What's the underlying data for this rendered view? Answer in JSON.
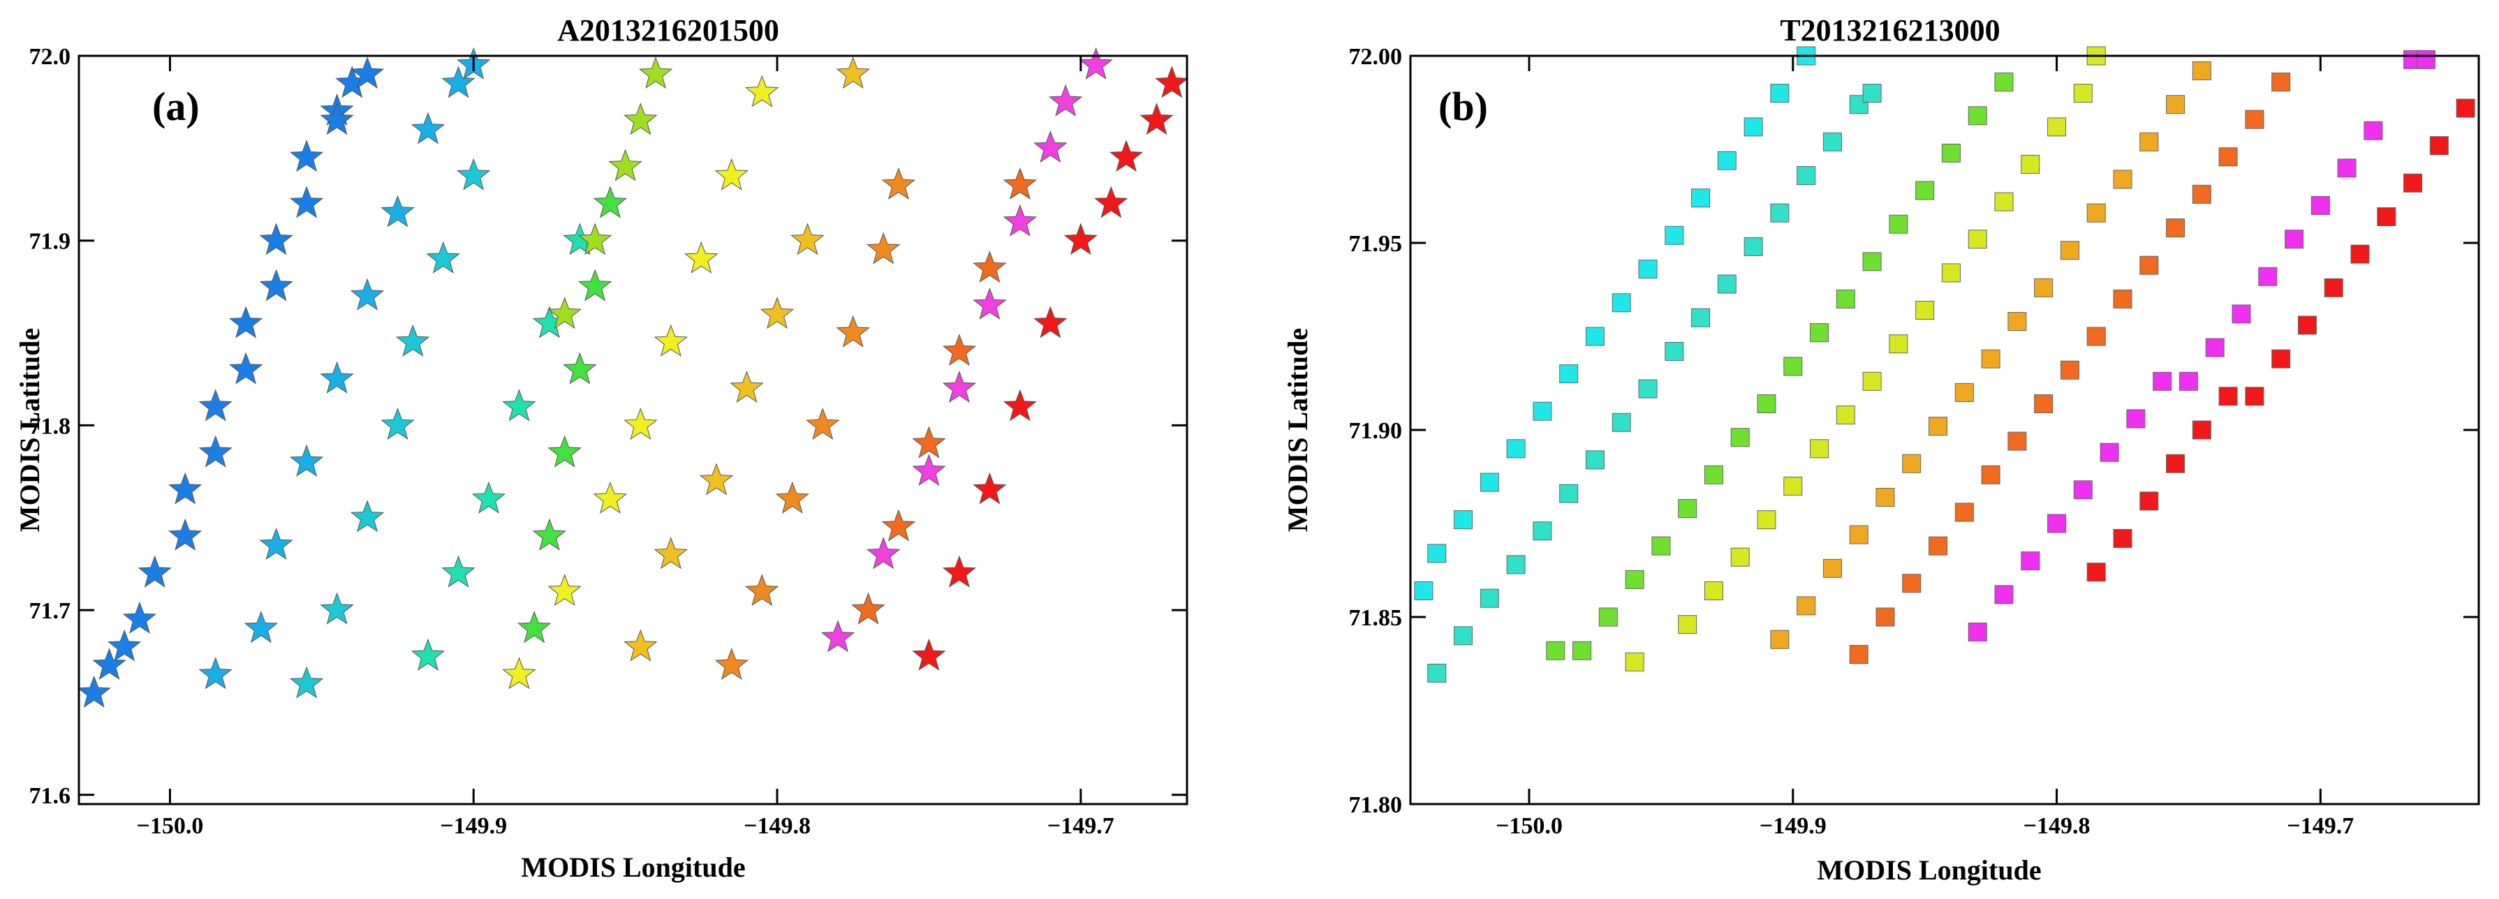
{
  "chart_data": [
    {
      "type": "scatter",
      "id": "a",
      "title": "A2013216201500",
      "panel_label": "(a)",
      "xlabel": "MODIS Longitude",
      "ylabel": "MODIS Latitude",
      "xlim": [
        -150.03,
        -149.665
      ],
      "ylim": [
        71.595,
        72.0
      ],
      "xticks": [
        -150.0,
        -149.9,
        -149.8,
        -149.7
      ],
      "xtick_labels": [
        "−150.0",
        "−149.9",
        "−149.8",
        "−149.7"
      ],
      "yticks": [
        71.6,
        71.7,
        71.8,
        71.9,
        72.0
      ],
      "ytick_labels": [
        "71.6",
        "71.7",
        "71.8",
        "71.9",
        "72.0"
      ],
      "marker": "star",
      "grid": false,
      "series": [
        {
          "name": "row-1",
          "color": "#1a7ee6",
          "x": [
            -150.025,
            -150.015,
            -150.005,
            -149.995,
            -149.985,
            -149.975,
            -149.965,
            -149.955,
            -149.945,
            -149.94
          ],
          "y": [
            71.655,
            71.68,
            71.72,
            71.765,
            71.81,
            71.855,
            71.9,
            71.945,
            71.97,
            71.985
          ]
        },
        {
          "name": "row-2",
          "color": "#1a7ee6",
          "x": [
            -150.02,
            -150.01,
            -149.995,
            -149.985,
            -149.975,
            -149.965,
            -149.955,
            -149.945,
            -149.935
          ],
          "y": [
            71.67,
            71.695,
            71.74,
            71.785,
            71.83,
            71.875,
            71.92,
            71.965,
            71.99
          ]
        },
        {
          "name": "row-3",
          "color": "#1aaee6",
          "x": [
            -149.985,
            -149.97,
            -149.965,
            -149.955,
            -149.945,
            -149.935,
            -149.925,
            -149.915,
            -149.905,
            -149.9
          ],
          "y": [
            71.665,
            71.69,
            71.735,
            71.78,
            71.825,
            71.87,
            71.915,
            71.96,
            71.985,
            71.995
          ]
        },
        {
          "name": "row-4",
          "color": "#1ac8d6",
          "x": [
            -149.955,
            -149.945,
            -149.935,
            -149.925,
            -149.92,
            -149.91,
            -149.9
          ],
          "y": [
            71.66,
            71.7,
            71.75,
            71.8,
            71.845,
            71.89,
            71.935
          ]
        },
        {
          "name": "row-5",
          "color": "#20e0b0",
          "x": [
            -149.915,
            -149.905,
            -149.895,
            -149.885,
            -149.875,
            -149.865
          ],
          "y": [
            71.675,
            71.72,
            71.76,
            71.81,
            71.855,
            71.9
          ]
        },
        {
          "name": "row-6",
          "color": "#44e040",
          "x": [
            -149.88,
            -149.875,
            -149.87,
            -149.865,
            -149.86,
            -149.855
          ],
          "y": [
            71.69,
            71.74,
            71.785,
            71.83,
            71.875,
            71.92
          ]
        },
        {
          "name": "row-7",
          "color": "#9ee020",
          "x": [
            -149.87,
            -149.86,
            -149.85,
            -149.845,
            -149.84
          ],
          "y": [
            71.86,
            71.9,
            71.94,
            71.965,
            71.99
          ]
        },
        {
          "name": "row-8",
          "color": "#f0f020",
          "x": [
            -149.885,
            -149.87,
            -149.855,
            -149.845,
            -149.835,
            -149.825,
            -149.815,
            -149.805
          ],
          "y": [
            71.665,
            71.71,
            71.76,
            71.8,
            71.845,
            71.89,
            71.935,
            71.98
          ]
        },
        {
          "name": "row-9",
          "color": "#f0c020",
          "x": [
            -149.845,
            -149.835,
            -149.82,
            -149.81,
            -149.8,
            -149.79,
            -149.775
          ],
          "y": [
            71.68,
            71.73,
            71.77,
            71.82,
            71.86,
            71.9,
            71.99
          ]
        },
        {
          "name": "row-10",
          "color": "#f08a20",
          "x": [
            -149.815,
            -149.805,
            -149.795,
            -149.785,
            -149.775,
            -149.765,
            -149.76
          ],
          "y": [
            71.67,
            71.71,
            71.76,
            71.8,
            71.85,
            71.895,
            71.93
          ]
        },
        {
          "name": "row-11",
          "color": "#f06a20",
          "x": [
            -149.77,
            -149.76,
            -149.75,
            -149.74,
            -149.73,
            -149.72
          ],
          "y": [
            71.7,
            71.745,
            71.79,
            71.84,
            71.885,
            71.93
          ]
        },
        {
          "name": "row-12",
          "color": "#f040e0",
          "x": [
            -149.78,
            -149.765,
            -149.75,
            -149.74,
            -149.73,
            -149.72,
            -149.71,
            -149.705,
            -149.695
          ],
          "y": [
            71.685,
            71.73,
            71.775,
            71.82,
            71.865,
            71.91,
            71.95,
            71.975,
            71.995
          ]
        },
        {
          "name": "row-13",
          "color": "#f01818",
          "x": [
            -149.75,
            -149.74,
            -149.73,
            -149.72,
            -149.71,
            -149.7,
            -149.69,
            -149.685,
            -149.675,
            -149.67
          ],
          "y": [
            71.675,
            71.72,
            71.765,
            71.81,
            71.855,
            71.9,
            71.92,
            71.945,
            71.965,
            71.985
          ]
        }
      ]
    },
    {
      "type": "scatter",
      "id": "b",
      "title": "T2013216213000",
      "panel_label": "(b)",
      "xlabel": "MODIS Longitude",
      "ylabel": "MODIS Latitude",
      "xlim": [
        -150.045,
        -149.64
      ],
      "ylim": [
        71.8,
        72.0
      ],
      "xticks": [
        -150.0,
        -149.9,
        -149.8,
        -149.7
      ],
      "xtick_labels": [
        "−150.0",
        "−149.9",
        "−149.8",
        "−149.7"
      ],
      "yticks": [
        71.8,
        71.85,
        71.9,
        71.95,
        72.0
      ],
      "ytick_labels": [
        "71.80",
        "71.85",
        "71.90",
        "71.95",
        "72.00"
      ],
      "marker": "square",
      "grid": false,
      "series": [
        {
          "name": "row-1",
          "color": "#20e8e8",
          "x": [
            -150.04,
            -150.035,
            -150.025,
            -150.015,
            -150.005,
            -149.995,
            -149.985,
            -149.975,
            -149.965,
            -149.955,
            -149.945,
            -149.935,
            -149.925,
            -149.915,
            -149.905,
            -149.895
          ],
          "y": [
            71.857,
            71.867,
            71.876,
            71.886,
            71.895,
            71.905,
            71.915,
            71.925,
            71.934,
            71.943,
            71.952,
            71.962,
            71.972,
            71.981,
            71.99,
            72.0
          ]
        },
        {
          "name": "row-2",
          "color": "#30e0c8",
          "x": [
            -150.035,
            -150.025,
            -150.015,
            -150.005,
            -149.995,
            -149.985,
            -149.975,
            -149.965,
            -149.955,
            -149.945,
            -149.935,
            -149.925,
            -149.915,
            -149.905,
            -149.895,
            -149.885,
            -149.875,
            -149.87
          ],
          "y": [
            71.835,
            71.845,
            71.855,
            71.864,
            71.873,
            71.883,
            71.892,
            71.902,
            71.911,
            71.921,
            71.93,
            71.939,
            71.949,
            71.958,
            71.968,
            71.977,
            71.987,
            71.99
          ]
        },
        {
          "name": "row-3",
          "color": "#70e030",
          "x": [
            -149.99,
            -149.98,
            -149.97,
            -149.96,
            -149.95,
            -149.94,
            -149.93,
            -149.92,
            -149.91,
            -149.9,
            -149.89,
            -149.88,
            -149.87,
            -149.86,
            -149.85,
            -149.84,
            -149.83,
            -149.82
          ],
          "y": [
            71.841,
            71.841,
            71.85,
            71.86,
            71.869,
            71.879,
            71.888,
            71.898,
            71.907,
            71.917,
            71.926,
            71.935,
            71.945,
            71.955,
            71.964,
            71.974,
            71.984,
            71.993
          ]
        },
        {
          "name": "row-4",
          "color": "#d8e820",
          "x": [
            -149.96,
            -149.94,
            -149.93,
            -149.92,
            -149.91,
            -149.9,
            -149.89,
            -149.88,
            -149.87,
            -149.86,
            -149.85,
            -149.84,
            -149.83,
            -149.82,
            -149.81,
            -149.8,
            -149.79,
            -149.785
          ],
          "y": [
            71.838,
            71.848,
            71.857,
            71.866,
            71.876,
            71.885,
            71.895,
            71.904,
            71.913,
            71.923,
            71.932,
            71.942,
            71.951,
            71.961,
            71.971,
            71.981,
            71.99,
            72.0
          ]
        },
        {
          "name": "row-5",
          "color": "#f0a820",
          "x": [
            -149.905,
            -149.895,
            -149.885,
            -149.875,
            -149.865,
            -149.855,
            -149.845,
            -149.835,
            -149.825,
            -149.815,
            -149.805,
            -149.795,
            -149.785,
            -149.775,
            -149.765,
            -149.755,
            -149.745
          ],
          "y": [
            71.844,
            71.853,
            71.863,
            71.872,
            71.882,
            71.891,
            71.901,
            71.91,
            71.919,
            71.929,
            71.938,
            71.948,
            71.958,
            71.967,
            71.977,
            71.987,
            71.996
          ]
        },
        {
          "name": "row-6",
          "color": "#f06a20",
          "x": [
            -149.875,
            -149.865,
            -149.855,
            -149.845,
            -149.835,
            -149.825,
            -149.815,
            -149.805,
            -149.795,
            -149.785,
            -149.775,
            -149.765,
            -149.755,
            -149.745,
            -149.735,
            -149.725,
            -149.715
          ],
          "y": [
            71.84,
            71.85,
            71.859,
            71.869,
            71.878,
            71.888,
            71.897,
            71.907,
            71.916,
            71.925,
            71.935,
            71.944,
            71.954,
            71.963,
            71.973,
            71.983,
            71.993
          ]
        },
        {
          "name": "row-7",
          "color": "#f030f0",
          "x": [
            -149.83,
            -149.82,
            -149.81,
            -149.8,
            -149.79,
            -149.78,
            -149.77,
            -149.76,
            -149.75,
            -149.74,
            -149.73,
            -149.72,
            -149.71,
            -149.7,
            -149.69,
            -149.68,
            -149.665,
            -149.66
          ],
          "y": [
            71.846,
            71.856,
            71.865,
            71.875,
            71.884,
            71.894,
            71.903,
            71.913,
            71.913,
            71.922,
            71.931,
            71.941,
            71.951,
            71.96,
            71.97,
            71.98,
            71.999,
            71.999
          ]
        },
        {
          "name": "row-8",
          "color": "#f01818",
          "x": [
            -149.785,
            -149.775,
            -149.765,
            -149.755,
            -149.745,
            -149.735,
            -149.725,
            -149.715,
            -149.705,
            -149.695,
            -149.685,
            -149.675,
            -149.665,
            -149.655,
            -149.645
          ],
          "y": [
            71.862,
            71.871,
            71.881,
            71.891,
            71.9,
            71.909,
            71.909,
            71.919,
            71.928,
            71.938,
            71.947,
            71.957,
            71.966,
            71.976,
            71.986
          ]
        }
      ]
    }
  ]
}
